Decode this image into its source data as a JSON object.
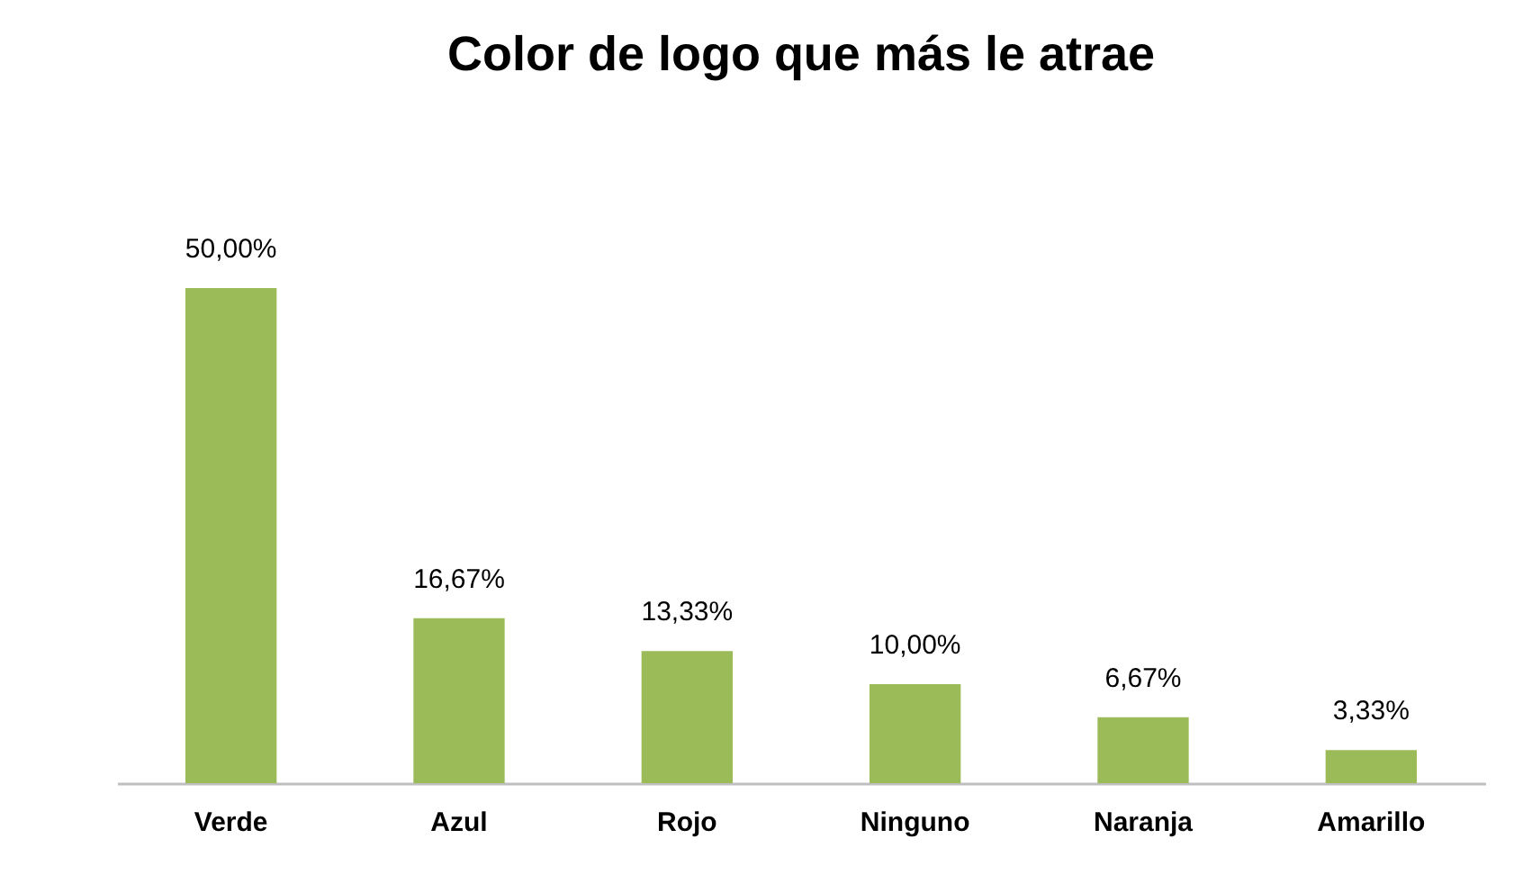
{
  "chart_data": {
    "type": "bar",
    "title": "Color de logo que más le atrae",
    "categories": [
      "Verde",
      "Azul",
      "Rojo",
      "Ninguno",
      "Naranja",
      "Amarillo"
    ],
    "values": [
      50.0,
      16.67,
      13.33,
      10.0,
      6.67,
      3.33
    ],
    "value_labels": [
      "50,00%",
      "16,67%",
      "13,33%",
      "10,00%",
      "6,67%",
      "3,33%"
    ],
    "color": "#9bbb59",
    "tick_labels": "x",
    "grid": false
  }
}
